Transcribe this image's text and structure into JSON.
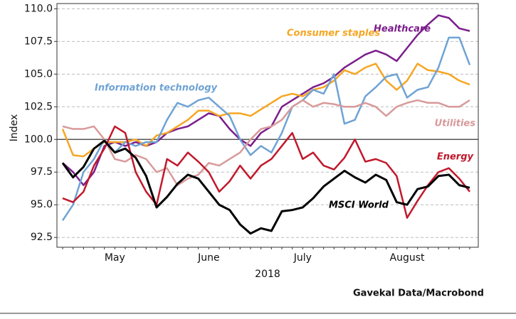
{
  "chart_data": {
    "type": "line",
    "ylabel": "Index",
    "xlabel": "2018",
    "source": "Gavekal Data/Macrobond",
    "categories": [
      null,
      null,
      null,
      null,
      null,
      "May",
      null,
      null,
      null,
      null,
      null,
      null,
      null,
      null,
      "June",
      null,
      null,
      null,
      null,
      null,
      null,
      null,
      null,
      "July",
      null,
      null,
      null,
      null,
      null,
      null,
      null,
      null,
      null,
      "August",
      null,
      null,
      null,
      null,
      null,
      null
    ],
    "ylim": [
      91.75,
      110.4
    ],
    "yticks": [
      92.5,
      {
        "value": 95,
        "label": "95.0"
      },
      97.5,
      {
        "value": 100,
        "label": "100.0"
      },
      102.5,
      {
        "value": 105,
        "label": "105.0"
      },
      107.5,
      {
        "value": 110,
        "label": "110.0"
      }
    ],
    "grid": true,
    "hline": 100,
    "series": [
      {
        "name": "Healthcare",
        "color": "#7b1e8c",
        "values": [
          98.2,
          97.5,
          96.5,
          97.5,
          99.5,
          99.8,
          99.5,
          99.8,
          99.5,
          99.8,
          100.5,
          100.8,
          101.0,
          101.5,
          102.0,
          101.8,
          100.8,
          100.0,
          99.5,
          100.5,
          101.0,
          102.5,
          103.0,
          103.5,
          104.0,
          104.3,
          104.8,
          105.5,
          106.0,
          106.5,
          106.8,
          106.5,
          106.0,
          107.0,
          108.0,
          108.8,
          109.5,
          109.3,
          108.5,
          108.3
        ]
      },
      {
        "name": "Consumer staples",
        "color": "#f5a623",
        "values": [
          100.8,
          98.8,
          98.7,
          99.3,
          99.8,
          99.8,
          99.8,
          100.0,
          99.5,
          100.3,
          100.5,
          101.0,
          101.5,
          102.2,
          102.2,
          101.8,
          102.0,
          102.0,
          101.8,
          102.3,
          102.8,
          103.3,
          103.5,
          103.3,
          103.8,
          104.0,
          104.5,
          105.3,
          105.0,
          105.5,
          105.8,
          104.5,
          103.8,
          104.5,
          105.8,
          105.3,
          105.2,
          105.0,
          104.5,
          104.2
        ]
      },
      {
        "name": "Information technology",
        "color": "#6fa3d4",
        "values": [
          93.8,
          95.0,
          97.5,
          98.5,
          100.0,
          99.0,
          99.8,
          99.5,
          99.8,
          99.8,
          101.5,
          102.8,
          102.5,
          103.0,
          103.2,
          102.5,
          101.8,
          100.0,
          98.8,
          99.5,
          99.0,
          100.5,
          102.5,
          103.0,
          103.8,
          103.5,
          105.0,
          101.2,
          101.5,
          103.3,
          104.0,
          104.8,
          105.0,
          103.2,
          103.8,
          104.0,
          105.5,
          107.8,
          107.8,
          105.7
        ]
      },
      {
        "name": "Utilities",
        "color": "#d89a9a",
        "values": [
          101.0,
          100.8,
          100.8,
          101.0,
          100.0,
          98.5,
          98.3,
          98.8,
          98.5,
          97.5,
          97.8,
          96.5,
          97.0,
          97.3,
          98.2,
          98.0,
          98.5,
          99.0,
          100.0,
          100.8,
          101.0,
          101.5,
          102.5,
          103.0,
          102.5,
          102.8,
          102.7,
          102.5,
          102.5,
          102.8,
          102.5,
          101.8,
          102.5,
          102.8,
          103.0,
          102.8,
          102.8,
          102.5,
          102.5,
          103.0
        ]
      },
      {
        "name": "Energy",
        "color": "#c0192c",
        "values": [
          95.5,
          95.2,
          96.0,
          98.0,
          99.3,
          101.0,
          100.5,
          97.5,
          96.0,
          95.0,
          98.5,
          98.0,
          99.0,
          98.3,
          97.5,
          96.0,
          96.8,
          98.0,
          97.0,
          98.0,
          98.5,
          99.5,
          100.5,
          98.5,
          99.0,
          98.0,
          97.7,
          98.6,
          100.0,
          98.3,
          98.5,
          98.2,
          97.2,
          94.0,
          95.3,
          96.5,
          97.5,
          97.8,
          97.0,
          96.0
        ]
      },
      {
        "name": "MSCI World",
        "color": "#000000",
        "values": [
          98.2,
          97.1,
          97.9,
          99.3,
          99.9,
          99.0,
          99.3,
          98.6,
          97.2,
          94.8,
          95.6,
          96.6,
          97.3,
          97.0,
          96.0,
          95.0,
          94.6,
          93.5,
          92.8,
          93.2,
          93.0,
          94.5,
          94.6,
          94.8,
          95.5,
          96.4,
          97.0,
          97.6,
          97.1,
          96.7,
          97.3,
          96.9,
          95.2,
          95.0,
          96.2,
          96.4,
          97.2,
          97.3,
          96.5,
          96.3
        ]
      }
    ]
  }
}
